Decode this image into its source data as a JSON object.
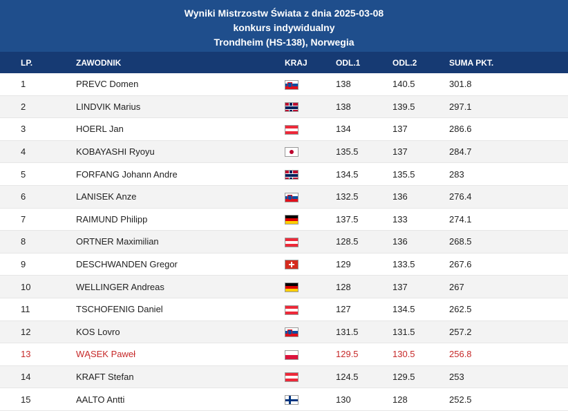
{
  "title": {
    "line1": "Wyniki Mistrzostw Świata z dnia 2025-03-08",
    "line2": "konkurs indywidualny",
    "line3": "Trondheim (HS-138), Norwegia"
  },
  "columns": {
    "lp": "LP.",
    "name": "ZAWODNIK",
    "country": "KRAJ",
    "odl1": "ODL.1",
    "odl2": "ODL.2",
    "sum": "SUMA PKT."
  },
  "rows": [
    {
      "lp": "1",
      "name": "PREVC Domen",
      "flag": "slovenia-flag",
      "odl1": "138",
      "odl2": "140.5",
      "sum": "301.8"
    },
    {
      "lp": "2",
      "name": "LINDVIK Marius",
      "flag": "norway-flag",
      "odl1": "138",
      "odl2": "139.5",
      "sum": "297.1"
    },
    {
      "lp": "3",
      "name": "HOERL Jan",
      "flag": "austria-flag",
      "odl1": "134",
      "odl2": "137",
      "sum": "286.6"
    },
    {
      "lp": "4",
      "name": "KOBAYASHI Ryoyu",
      "flag": "japan-flag",
      "odl1": "135.5",
      "odl2": "137",
      "sum": "284.7"
    },
    {
      "lp": "5",
      "name": "FORFANG Johann Andre",
      "flag": "norway-flag",
      "odl1": "134.5",
      "odl2": "135.5",
      "sum": "283"
    },
    {
      "lp": "6",
      "name": "LANISEK Anze",
      "flag": "slovenia-flag",
      "odl1": "132.5",
      "odl2": "136",
      "sum": "276.4"
    },
    {
      "lp": "7",
      "name": "RAIMUND Philipp",
      "flag": "germany-flag",
      "odl1": "137.5",
      "odl2": "133",
      "sum": "274.1"
    },
    {
      "lp": "8",
      "name": "ORTNER Maximilian",
      "flag": "austria-flag",
      "odl1": "128.5",
      "odl2": "136",
      "sum": "268.5"
    },
    {
      "lp": "9",
      "name": "DESCHWANDEN Gregor",
      "flag": "switzerland-flag",
      "odl1": "129",
      "odl2": "133.5",
      "sum": "267.6"
    },
    {
      "lp": "10",
      "name": "WELLINGER Andreas",
      "flag": "germany-flag",
      "odl1": "128",
      "odl2": "137",
      "sum": "267"
    },
    {
      "lp": "11",
      "name": "TSCHOFENIG Daniel",
      "flag": "austria-flag",
      "odl1": "127",
      "odl2": "134.5",
      "sum": "262.5"
    },
    {
      "lp": "12",
      "name": "KOS Lovro",
      "flag": "slovenia-flag",
      "odl1": "131.5",
      "odl2": "131.5",
      "sum": "257.2"
    },
    {
      "lp": "13",
      "name": "WĄSEK Paweł",
      "flag": "poland-flag",
      "odl1": "129.5",
      "odl2": "130.5",
      "sum": "256.8",
      "highlight": true
    },
    {
      "lp": "14",
      "name": "KRAFT Stefan",
      "flag": "austria-flag",
      "odl1": "124.5",
      "odl2": "129.5",
      "sum": "253"
    },
    {
      "lp": "15",
      "name": "AALTO Antti",
      "flag": "finland-flag",
      "odl1": "130",
      "odl2": "128",
      "sum": "252.5"
    }
  ],
  "colors": {
    "title_bg": "#1f4e8c",
    "header_bg": "#163a73",
    "highlight_text": "#c62828"
  }
}
